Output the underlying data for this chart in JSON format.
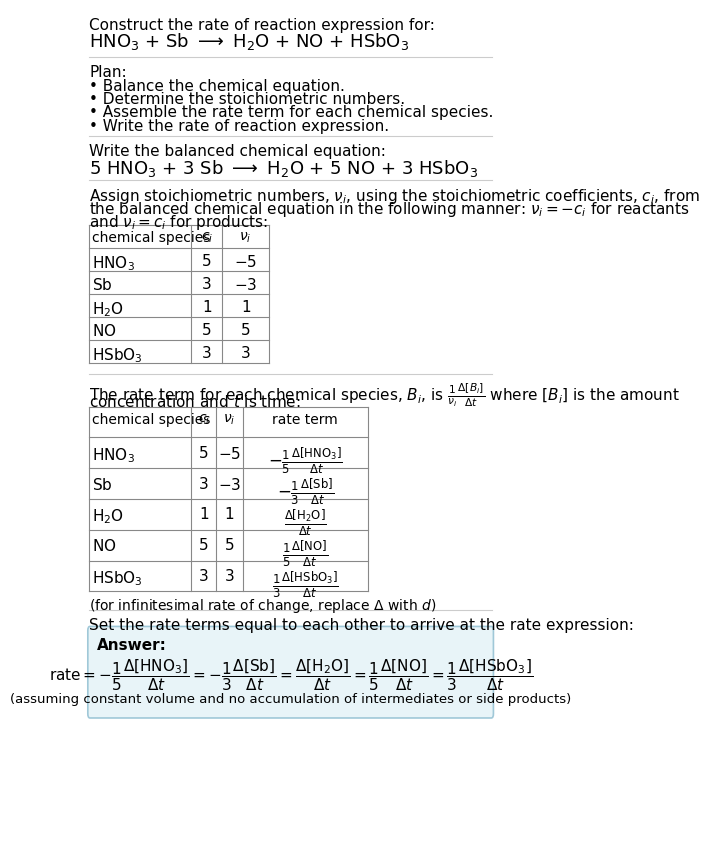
{
  "bg_color": "#ffffff",
  "text_color": "#000000",
  "answer_box_color": "#e8f4f8",
  "answer_box_edge": "#a0c8d8",
  "title_line1": "Construct the rate of reaction expression for:",
  "plan_header": "Plan:",
  "plan_items": [
    "• Balance the chemical equation.",
    "• Determine the stoichiometric numbers.",
    "• Assemble the rate term for each chemical species.",
    "• Write the rate of reaction expression."
  ],
  "balanced_header": "Write the balanced chemical equation:",
  "stoich_header_line1": "Assign stoichiometric numbers, $\\nu_i$, using the stoichiometric coefficients, $c_i$, from",
  "stoich_header_line2": "the balanced chemical equation in the following manner: $\\nu_i = -c_i$ for reactants",
  "stoich_header_line3": "and $\\nu_i = c_i$ for products:",
  "table1_headers": [
    "chemical species",
    "$c_i$",
    "$\\nu_i$"
  ],
  "table1_data": [
    [
      "$\\mathrm{HNO_3}$",
      "5",
      "$-5$"
    ],
    [
      "$\\mathrm{Sb}$",
      "3",
      "$-3$"
    ],
    [
      "$\\mathrm{H_2O}$",
      "1",
      "1"
    ],
    [
      "$\\mathrm{NO}$",
      "5",
      "5"
    ],
    [
      "$\\mathrm{HSbO_3}$",
      "3",
      "3"
    ]
  ],
  "rate_header_line1": "The rate term for each chemical species, $B_i$, is $\\frac{1}{\\nu_i}\\frac{\\Delta[B_i]}{\\Delta t}$ where $[B_i]$ is the amount",
  "rate_header_line2": "concentration and $t$ is time:",
  "table2_headers": [
    "chemical species",
    "$c_i$",
    "$\\nu_i$",
    "rate term"
  ],
  "table2_data": [
    [
      "$\\mathrm{HNO_3}$",
      "5",
      "$-5$",
      "$-\\frac{1}{5}\\frac{\\Delta[\\mathrm{HNO_3}]}{\\Delta t}$"
    ],
    [
      "$\\mathrm{Sb}$",
      "3",
      "$-3$",
      "$-\\frac{1}{3}\\frac{\\Delta[\\mathrm{Sb}]}{\\Delta t}$"
    ],
    [
      "$\\mathrm{H_2O}$",
      "1",
      "1",
      "$\\frac{\\Delta[\\mathrm{H_2O}]}{\\Delta t}$"
    ],
    [
      "$\\mathrm{NO}$",
      "5",
      "5",
      "$\\frac{1}{5}\\frac{\\Delta[\\mathrm{NO}]}{\\Delta t}$"
    ],
    [
      "$\\mathrm{HSbO_3}$",
      "3",
      "3",
      "$\\frac{1}{3}\\frac{\\Delta[\\mathrm{HSbO_3}]}{\\Delta t}$"
    ]
  ],
  "infinitesimal_note": "(for infinitesimal rate of change, replace $\\Delta$ with $d$)",
  "set_equal_header": "Set the rate terms equal to each other to arrive at the rate expression:",
  "answer_label": "Answer:",
  "answer_note": "(assuming constant volume and no accumulation of intermediates or side products)",
  "divider_color": "#cccccc",
  "table_color": "#888888"
}
